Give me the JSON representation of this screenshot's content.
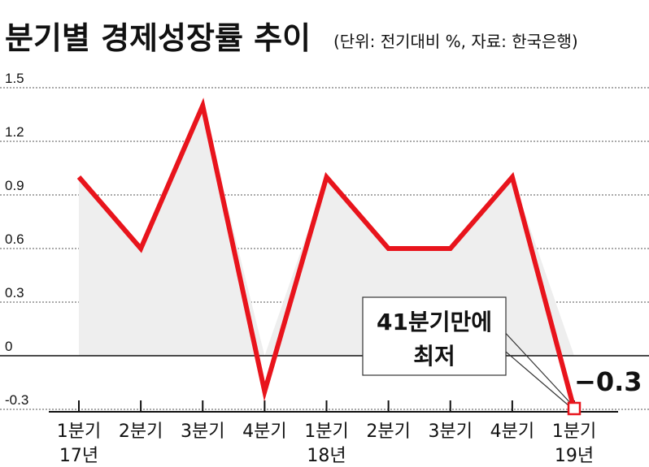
{
  "chart_data": {
    "type": "line",
    "title": "분기별 경제성장률 추이",
    "subtitle": "(단위: 전기대비 %, 자료: 한국은행)",
    "categories": [
      "1분기",
      "2분기",
      "3분기",
      "4분기",
      "1분기",
      "2분기",
      "3분기",
      "4분기",
      "1분기"
    ],
    "year_labels": [
      "17년",
      "",
      "",
      "",
      "18년",
      "",
      "",
      "",
      "19년"
    ],
    "series": [
      {
        "values": [
          1.0,
          0.6,
          1.4,
          -0.2,
          1.0,
          0.6,
          0.6,
          1.0,
          -0.3
        ]
      }
    ],
    "y_ticks": [
      "1.5",
      "1.2",
      "0.9",
      "0.6",
      "0.3",
      "0",
      "-0.3"
    ],
    "ylim": [
      -0.3,
      1.5
    ],
    "grid": "horizontal dotted",
    "line_color": "#e8141c",
    "fill_color": "#eeeeee",
    "last_value_label": "−0.3",
    "annotation": {
      "lines": [
        "41분기만에",
        "최저"
      ]
    }
  }
}
